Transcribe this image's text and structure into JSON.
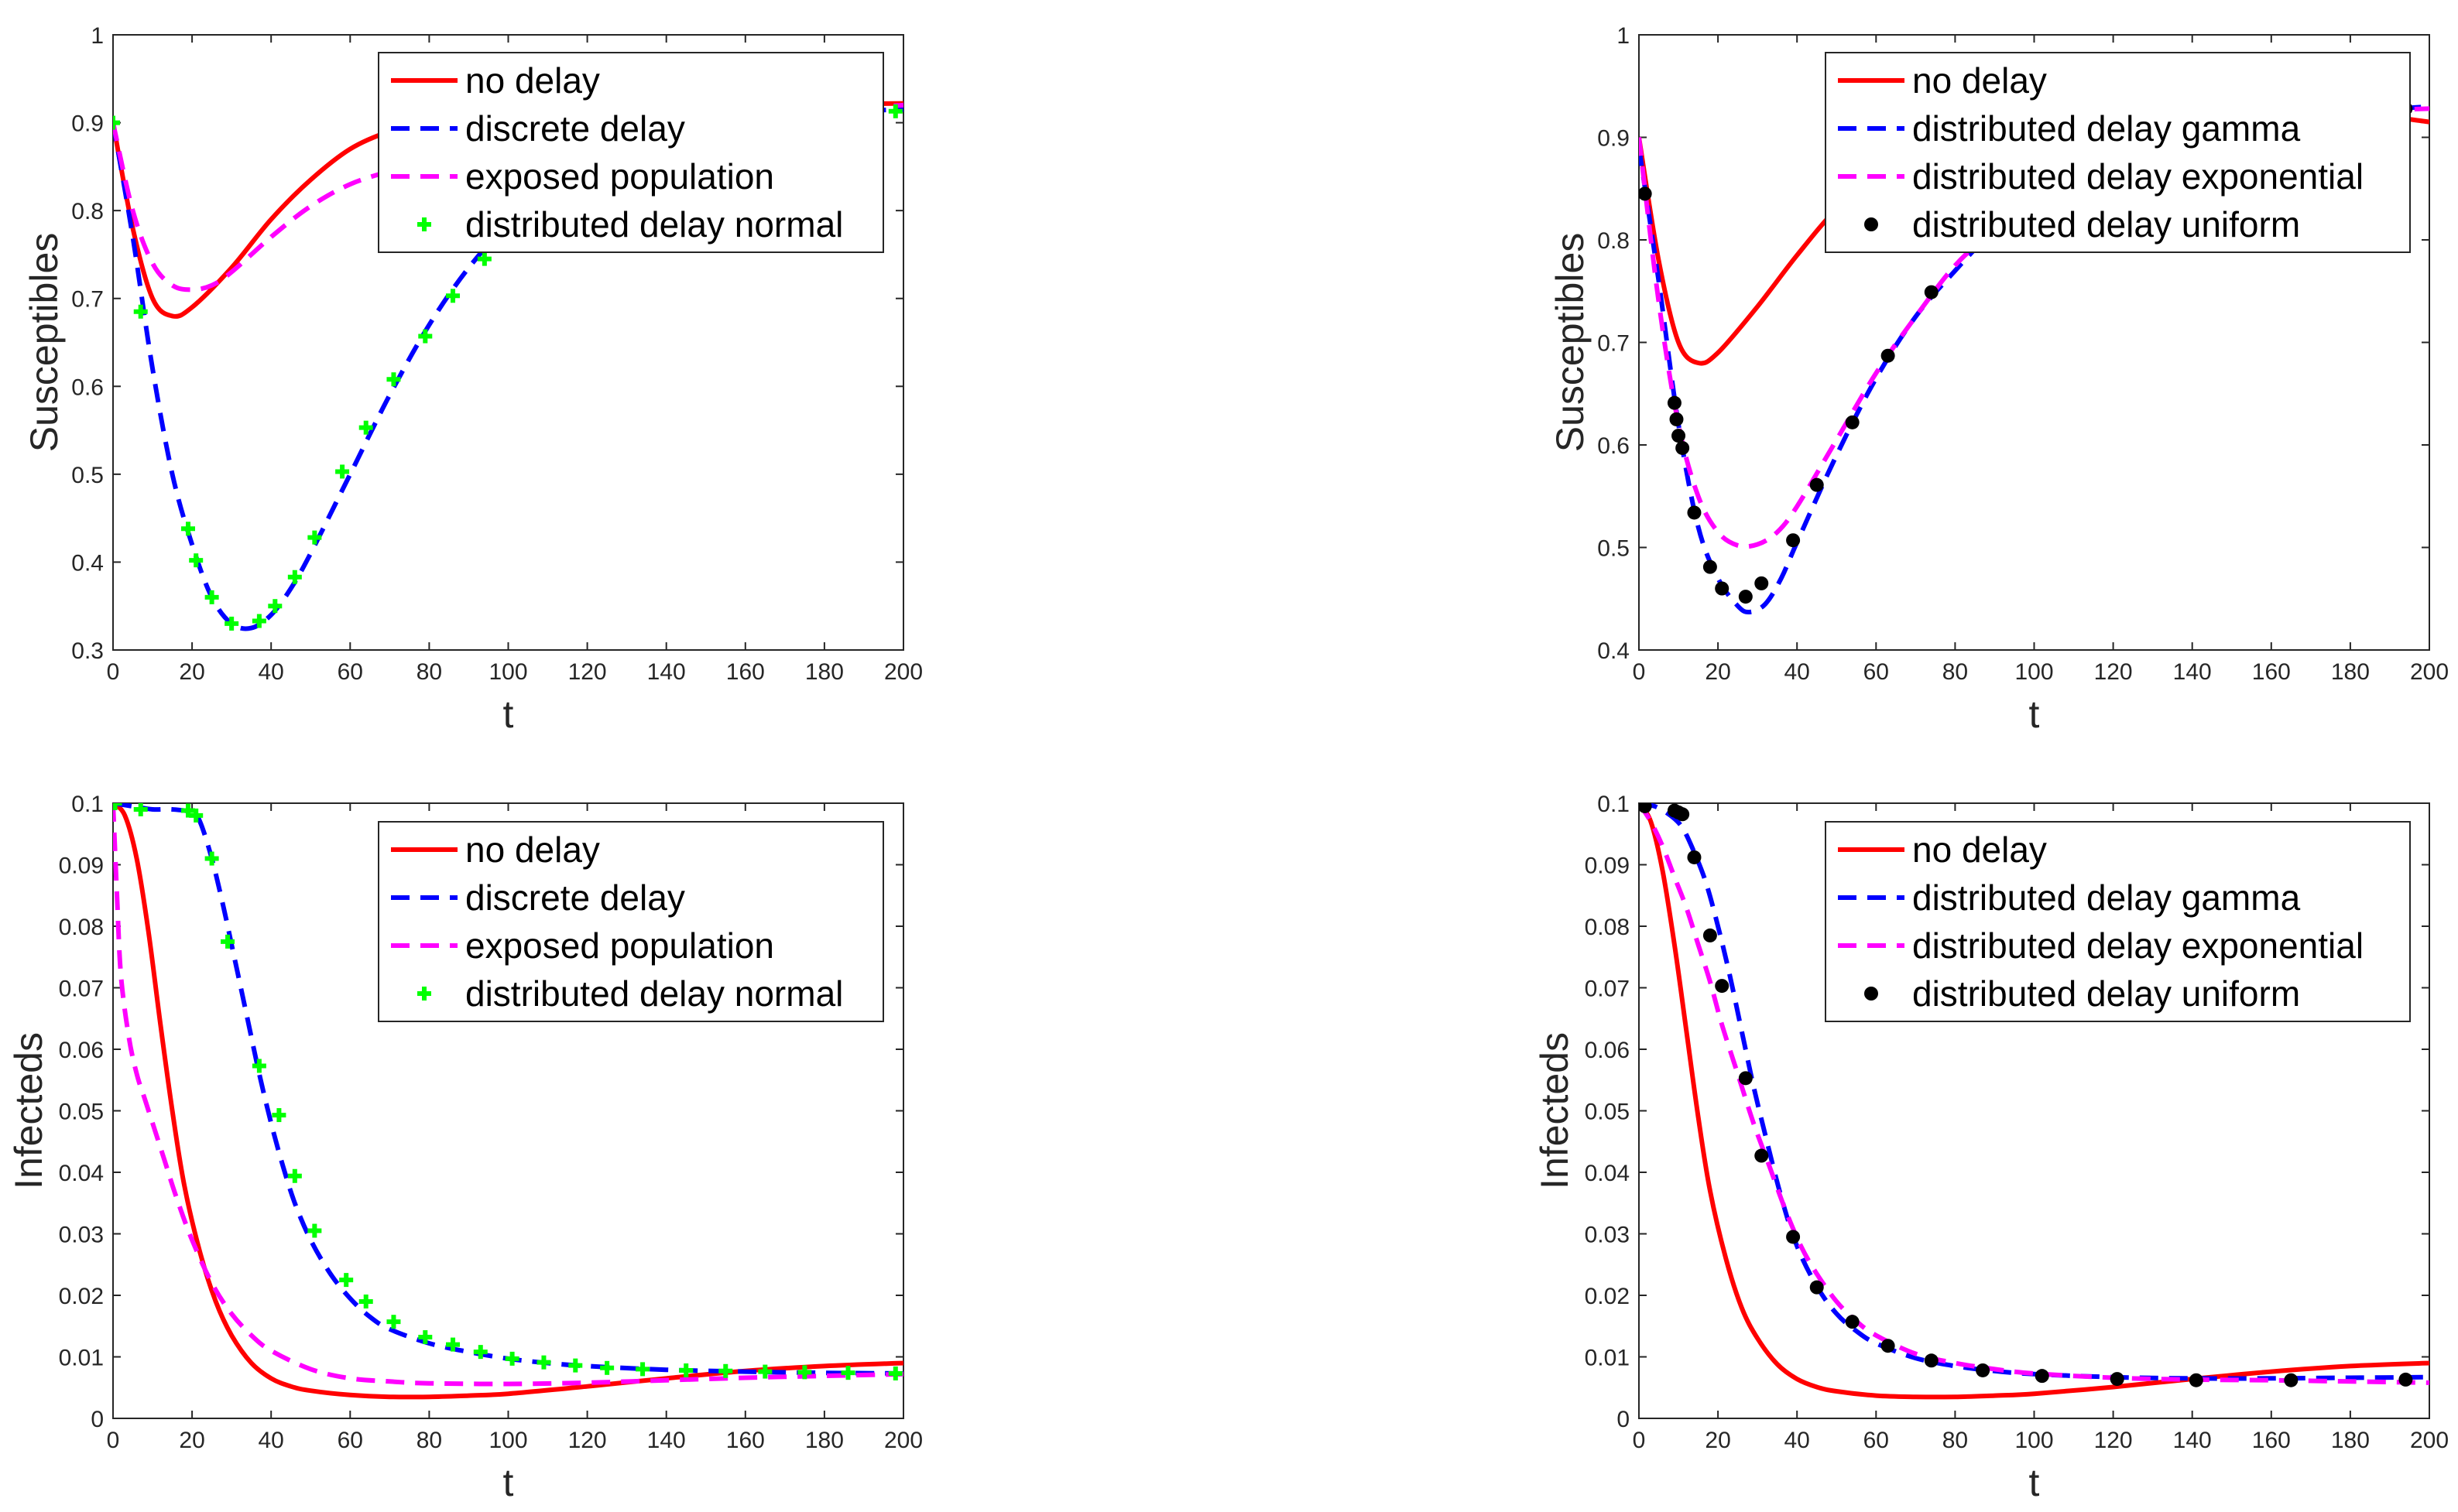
{
  "colors": {
    "no_delay": "#ff0000",
    "discrete_delay": "#0000ff",
    "exposed_population": "#ff00ff",
    "distributed_normal": "#00ff00",
    "distributed_gamma": "#0000ff",
    "distributed_exponential": "#ff00ff",
    "distributed_uniform": "#000000"
  },
  "chart_data": [
    {
      "type": "line",
      "xlabel": "t",
      "ylabel": "Susceptibles",
      "xlim": [
        0,
        200
      ],
      "ylim": [
        0.3,
        1
      ],
      "xticks": [
        "0",
        "20",
        "40",
        "60",
        "80",
        "100",
        "120",
        "140",
        "160",
        "180",
        "200"
      ],
      "yticks": [
        "0.3",
        "0.4",
        "0.5",
        "0.6",
        "0.7",
        "0.8",
        "0.9",
        "1"
      ],
      "legend_position": "top-right",
      "grid": false,
      "series": [
        {
          "name": "no delay",
          "style": "solid",
          "color": "#ff0000",
          "x": [
            0,
            5,
            10,
            15,
            20,
            30,
            40,
            50,
            60,
            70,
            80,
            100,
            120,
            140,
            160,
            180,
            200
          ],
          "y": [
            0.9,
            0.78,
            0.7,
            0.68,
            0.69,
            0.735,
            0.79,
            0.835,
            0.87,
            0.89,
            0.9,
            0.91,
            0.915,
            0.918,
            0.92,
            0.921,
            0.922
          ]
        },
        {
          "name": "discrete delay",
          "style": "dashed",
          "color": "#0000ff",
          "x": [
            0,
            5,
            10,
            15,
            20,
            25,
            30,
            35,
            40,
            45,
            50,
            60,
            70,
            80,
            90,
            100,
            110,
            120,
            140,
            160,
            180,
            200
          ],
          "y": [
            0.9,
            0.77,
            0.62,
            0.5,
            0.42,
            0.36,
            0.33,
            0.325,
            0.34,
            0.37,
            0.41,
            0.5,
            0.59,
            0.67,
            0.735,
            0.785,
            0.825,
            0.855,
            0.89,
            0.905,
            0.912,
            0.915
          ]
        },
        {
          "name": "exposed population",
          "style": "dashed",
          "color": "#ff00ff",
          "x": [
            0,
            5,
            10,
            15,
            20,
            25,
            30,
            40,
            50,
            60,
            70,
            80,
            100,
            120,
            140,
            160,
            180,
            200
          ],
          "y": [
            0.9,
            0.8,
            0.74,
            0.715,
            0.71,
            0.715,
            0.73,
            0.77,
            0.805,
            0.83,
            0.845,
            0.86,
            0.88,
            0.895,
            0.905,
            0.91,
            0.915,
            0.92
          ]
        },
        {
          "name": "distributed delay normal",
          "style": "marker-plus",
          "color": "#00ff00",
          "x": [
            0,
            7,
            19,
            21,
            25,
            30,
            37,
            41,
            46,
            51,
            58,
            64,
            71,
            79,
            86,
            94,
            198
          ],
          "y": [
            0.9,
            0.685,
            0.438,
            0.402,
            0.36,
            0.33,
            0.333,
            0.35,
            0.383,
            0.428,
            0.503,
            0.553,
            0.608,
            0.657,
            0.703,
            0.745,
            0.913
          ]
        }
      ]
    },
    {
      "type": "line",
      "xlabel": "t",
      "ylabel": "Susceptibles",
      "xlim": [
        0,
        200
      ],
      "ylim": [
        0.4,
        1
      ],
      "xticks": [
        "0",
        "20",
        "40",
        "60",
        "80",
        "100",
        "120",
        "140",
        "160",
        "180",
        "200"
      ],
      "yticks": [
        "0.4",
        "0.5",
        "0.6",
        "0.7",
        "0.8",
        "0.9",
        "1"
      ],
      "legend_position": "top-right",
      "grid": false,
      "series": [
        {
          "name": "no delay",
          "style": "solid",
          "color": "#ff0000",
          "x": [
            0,
            5,
            10,
            15,
            20,
            30,
            40,
            50,
            60,
            70,
            80,
            100,
            120,
            140,
            160,
            180,
            200
          ],
          "y": [
            0.9,
            0.78,
            0.7,
            0.68,
            0.69,
            0.735,
            0.785,
            0.83,
            0.86,
            0.88,
            0.895,
            0.91,
            0.92,
            0.93,
            0.932,
            0.925,
            0.915
          ]
        },
        {
          "name": "distributed delay gamma",
          "style": "dashed",
          "color": "#0000ff",
          "x": [
            0,
            5,
            10,
            15,
            20,
            25,
            28,
            32,
            36,
            40,
            50,
            60,
            70,
            80,
            90,
            100,
            120,
            140,
            160,
            180,
            200
          ],
          "y": [
            0.89,
            0.76,
            0.62,
            0.52,
            0.47,
            0.443,
            0.437,
            0.445,
            0.47,
            0.505,
            0.59,
            0.665,
            0.725,
            0.77,
            0.81,
            0.84,
            0.88,
            0.905,
            0.918,
            0.925,
            0.93
          ]
        },
        {
          "name": "distributed delay exponential",
          "style": "dashed",
          "color": "#ff00ff",
          "x": [
            0,
            5,
            10,
            15,
            20,
            25,
            30,
            35,
            40,
            50,
            60,
            70,
            80,
            90,
            100,
            120,
            140,
            160,
            180,
            200
          ],
          "y": [
            0.9,
            0.74,
            0.62,
            0.55,
            0.515,
            0.502,
            0.503,
            0.515,
            0.54,
            0.605,
            0.67,
            0.725,
            0.775,
            0.81,
            0.84,
            0.88,
            0.905,
            0.918,
            0.925,
            0.928
          ]
        },
        {
          "name": "distributed delay uniform",
          "style": "marker-dot",
          "color": "#000000",
          "x": [
            1.5,
            9,
            9.5,
            10,
            11,
            14,
            18,
            21,
            27,
            31,
            39,
            45,
            54,
            63,
            74,
            87,
            102,
            121,
            141,
            165,
            194
          ],
          "y": [
            0.845,
            0.641,
            0.625,
            0.609,
            0.597,
            0.534,
            0.481,
            0.46,
            0.452,
            0.465,
            0.507,
            0.561,
            0.622,
            0.687,
            0.749,
            0.809,
            0.854,
            0.889,
            0.909,
            0.921,
            0.928
          ]
        }
      ]
    },
    {
      "type": "line",
      "xlabel": "t",
      "ylabel": "Infecteds",
      "xlim": [
        0,
        200
      ],
      "ylim": [
        0,
        0.1
      ],
      "xticks": [
        "0",
        "20",
        "40",
        "60",
        "80",
        "100",
        "120",
        "140",
        "160",
        "180",
        "200"
      ],
      "yticks": [
        "0",
        "0.01",
        "0.02",
        "0.03",
        "0.04",
        "0.05",
        "0.06",
        "0.07",
        "0.08",
        "0.09",
        "0.1"
      ],
      "legend_position": "top-right",
      "grid": false,
      "series": [
        {
          "name": "no delay",
          "style": "solid",
          "color": "#ff0000",
          "x": [
            0,
            3,
            6,
            9,
            12,
            15,
            18,
            22,
            26,
            30,
            35,
            40,
            45,
            50,
            60,
            70,
            80,
            90,
            100,
            120,
            140,
            160,
            180,
            200
          ],
          "y": [
            0.1,
            0.098,
            0.091,
            0.079,
            0.064,
            0.05,
            0.038,
            0.027,
            0.019,
            0.0135,
            0.009,
            0.0065,
            0.0052,
            0.0045,
            0.0038,
            0.0035,
            0.0035,
            0.0037,
            0.004,
            0.0052,
            0.0065,
            0.0077,
            0.0085,
            0.009
          ]
        },
        {
          "name": "discrete delay",
          "style": "dashed",
          "color": "#0000ff",
          "x": [
            0,
            5,
            10,
            15,
            20,
            22,
            25,
            28,
            31,
            34,
            37,
            40,
            43,
            46,
            50,
            55,
            60,
            65,
            70,
            80,
            90,
            100,
            110,
            120,
            140,
            160,
            180,
            200
          ],
          "y": [
            0.1,
            0.0995,
            0.099,
            0.099,
            0.0985,
            0.097,
            0.091,
            0.083,
            0.074,
            0.065,
            0.056,
            0.048,
            0.041,
            0.035,
            0.029,
            0.0235,
            0.0195,
            0.0165,
            0.0145,
            0.0122,
            0.0108,
            0.0097,
            0.009,
            0.0085,
            0.0079,
            0.0076,
            0.0074,
            0.0073
          ]
        },
        {
          "name": "exposed population",
          "style": "dashed",
          "color": "#ff00ff",
          "x": [
            0,
            1,
            2,
            4,
            6,
            8,
            10,
            13,
            16,
            20,
            25,
            30,
            35,
            40,
            50,
            60,
            70,
            80,
            100,
            120,
            140,
            160,
            180,
            200
          ],
          "y": [
            0.1,
            0.085,
            0.072,
            0.062,
            0.056,
            0.052,
            0.048,
            0.042,
            0.036,
            0.029,
            0.022,
            0.017,
            0.0135,
            0.011,
            0.008,
            0.0065,
            0.006,
            0.0057,
            0.0056,
            0.0058,
            0.0062,
            0.0066,
            0.0069,
            0.0072
          ]
        },
        {
          "name": "distributed delay normal",
          "style": "marker-plus",
          "color": "#00ff00",
          "x": [
            0.5,
            7,
            19,
            21,
            25,
            29,
            37,
            42,
            46,
            51,
            59,
            64,
            71,
            79,
            86,
            93,
            101,
            109,
            117,
            125,
            134,
            145,
            155,
            165,
            175,
            186,
            198
          ],
          "y": [
            0.1,
            0.099,
            0.0988,
            0.098,
            0.091,
            0.0775,
            0.0573,
            0.0493,
            0.0394,
            0.0305,
            0.0225,
            0.019,
            0.0157,
            0.0132,
            0.012,
            0.0108,
            0.0097,
            0.0091,
            0.0086,
            0.0082,
            0.008,
            0.0078,
            0.0077,
            0.0076,
            0.0075,
            0.0074,
            0.0073
          ]
        }
      ]
    },
    {
      "type": "line",
      "xlabel": "t",
      "ylabel": "Infecteds",
      "xlim": [
        0,
        200
      ],
      "ylim": [
        0,
        0.1
      ],
      "xticks": [
        "0",
        "20",
        "40",
        "60",
        "80",
        "100",
        "120",
        "140",
        "160",
        "180",
        "200"
      ],
      "yticks": [
        "0",
        "0.01",
        "0.02",
        "0.03",
        "0.04",
        "0.05",
        "0.06",
        "0.07",
        "0.08",
        "0.09",
        "0.1"
      ],
      "legend_position": "top-right",
      "grid": false,
      "series": [
        {
          "name": "no delay",
          "style": "solid",
          "color": "#ff0000",
          "x": [
            0,
            3,
            6,
            9,
            12,
            15,
            18,
            22,
            26,
            30,
            35,
            40,
            45,
            50,
            60,
            70,
            80,
            90,
            100,
            120,
            140,
            160,
            180,
            200
          ],
          "y": [
            0.1,
            0.097,
            0.089,
            0.077,
            0.063,
            0.049,
            0.037,
            0.026,
            0.018,
            0.013,
            0.0088,
            0.0064,
            0.0051,
            0.0044,
            0.0037,
            0.0035,
            0.0035,
            0.0037,
            0.004,
            0.0051,
            0.0064,
            0.0076,
            0.0085,
            0.009
          ]
        },
        {
          "name": "distributed delay gamma",
          "style": "dashed",
          "color": "#0000ff",
          "x": [
            0,
            4,
            8,
            11,
            14,
            17,
            20,
            23,
            26,
            29,
            32,
            36,
            40,
            45,
            50,
            55,
            60,
            70,
            80,
            90,
            100,
            120,
            140,
            160,
            180,
            200
          ],
          "y": [
            0.1,
            0.0995,
            0.098,
            0.096,
            0.092,
            0.087,
            0.08,
            0.072,
            0.063,
            0.054,
            0.046,
            0.036,
            0.028,
            0.0215,
            0.017,
            0.0142,
            0.0122,
            0.0098,
            0.0085,
            0.0077,
            0.0072,
            0.0067,
            0.0065,
            0.0065,
            0.0066,
            0.0067
          ]
        },
        {
          "name": "distributed delay exponential",
          "style": "dashed",
          "color": "#ff00ff",
          "x": [
            0,
            3,
            6,
            9,
            12,
            15,
            18,
            21,
            25,
            29,
            33,
            37,
            41,
            45,
            50,
            55,
            60,
            70,
            80,
            90,
            100,
            120,
            140,
            160,
            180,
            200
          ],
          "y": [
            0.1,
            0.097,
            0.093,
            0.088,
            0.083,
            0.077,
            0.071,
            0.064,
            0.056,
            0.048,
            0.041,
            0.034,
            0.028,
            0.0235,
            0.019,
            0.0158,
            0.0135,
            0.0105,
            0.009,
            0.008,
            0.0073,
            0.0066,
            0.0063,
            0.0062,
            0.006,
            0.0058
          ]
        },
        {
          "name": "distributed delay uniform",
          "style": "marker-dot",
          "color": "#000000",
          "x": [
            1.5,
            9,
            10,
            11,
            14,
            18,
            21,
            27,
            31,
            39,
            45,
            54,
            63,
            74,
            87,
            102,
            121,
            141,
            165,
            194
          ],
          "y": [
            0.0995,
            0.0988,
            0.0985,
            0.0982,
            0.0912,
            0.0785,
            0.0703,
            0.0553,
            0.0427,
            0.0295,
            0.0213,
            0.0157,
            0.0118,
            0.0094,
            0.0078,
            0.0069,
            0.0064,
            0.0062,
            0.0062,
            0.0063
          ]
        }
      ]
    }
  ]
}
